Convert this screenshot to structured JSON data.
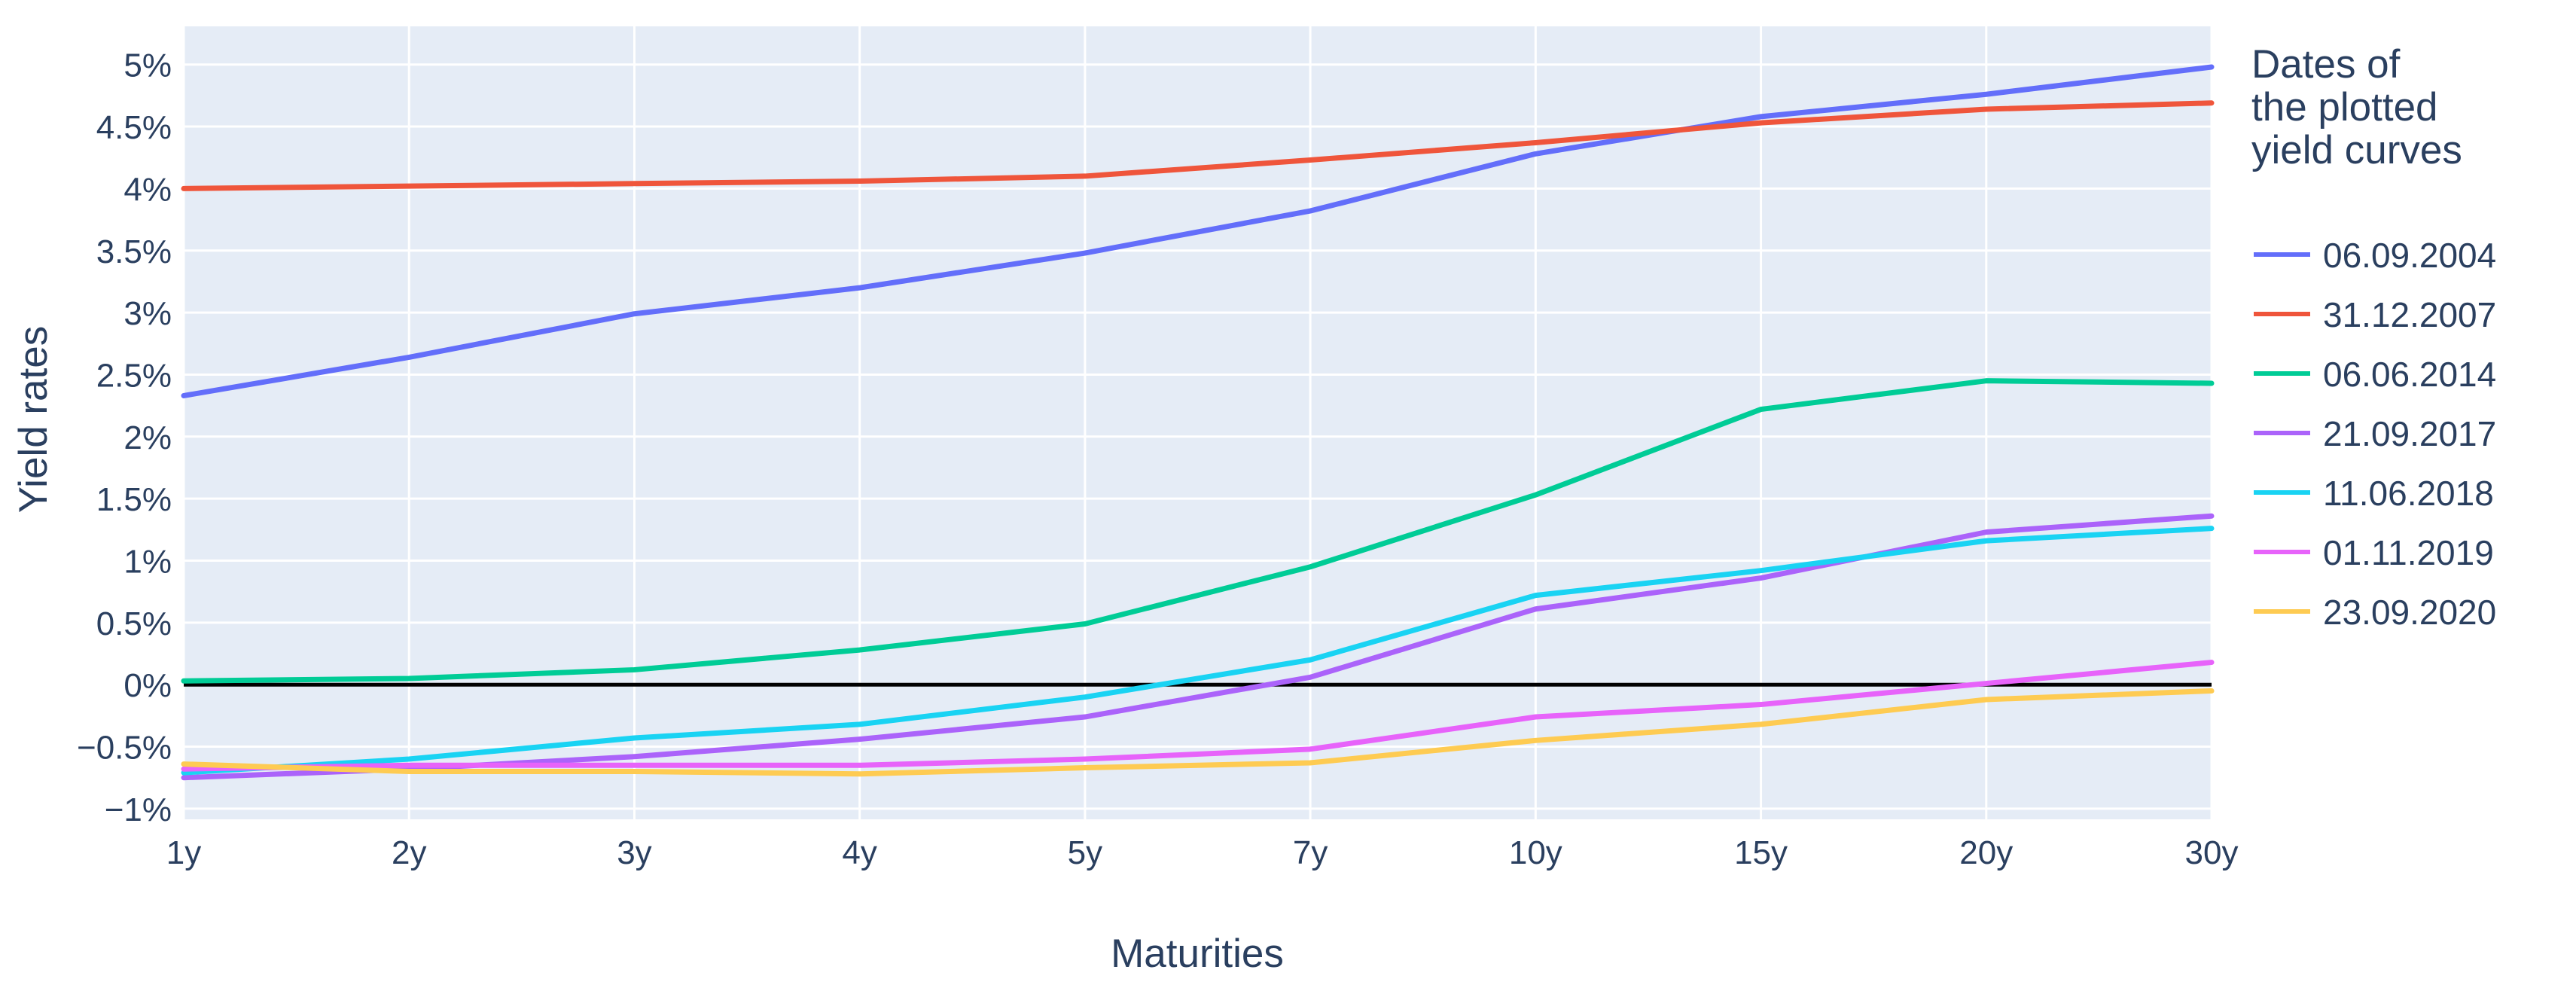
{
  "colors": {
    "text": "#2A3F5F",
    "plot_background": "#E5ECF6",
    "gridline": "#FFFFFF",
    "zero_line": "#000000",
    "page_background": "#FFFFFF"
  },
  "chart_data": {
    "type": "line",
    "title": "",
    "xlabel": "Maturities",
    "ylabel": "Yield rates",
    "categories": [
      "1y",
      "2y",
      "3y",
      "4y",
      "5y",
      "7y",
      "10y",
      "15y",
      "20y",
      "30y"
    ],
    "y_ticks": [
      5,
      4.5,
      4,
      3.5,
      3,
      2.5,
      2,
      1.5,
      1,
      0.5,
      0,
      -0.5,
      -1
    ],
    "y_tick_labels": [
      "5%",
      "4.5%",
      "4%",
      "3.5%",
      "3%",
      "2.5%",
      "2%",
      "1.5%",
      "1%",
      "0.5%",
      "0%",
      "−0.5%",
      "−1%"
    ],
    "ylim": [
      -1.07,
      5.31
    ],
    "grid": true,
    "zero_line": true,
    "legend_position": "right",
    "legend_title_lines": [
      "Dates of",
      "the plotted",
      " yield curves"
    ],
    "series": [
      {
        "name": "06.09.2004",
        "color": "#636EFA",
        "values": [
          2.33,
          2.64,
          2.99,
          3.2,
          3.48,
          3.82,
          4.28,
          4.58,
          4.76,
          4.98
        ]
      },
      {
        "name": "31.12.2007",
        "color": "#EF553B",
        "values": [
          4.0,
          4.02,
          4.04,
          4.06,
          4.1,
          4.23,
          4.37,
          4.53,
          4.64,
          4.69
        ]
      },
      {
        "name": "06.06.2014",
        "color": "#00CC96",
        "values": [
          0.03,
          0.05,
          0.12,
          0.28,
          0.49,
          0.95,
          1.53,
          2.22,
          2.45,
          2.43
        ]
      },
      {
        "name": "21.09.2017",
        "color": "#AB63FA",
        "values": [
          -0.75,
          -0.68,
          -0.58,
          -0.44,
          -0.26,
          0.06,
          0.61,
          0.86,
          1.23,
          1.36
        ]
      },
      {
        "name": "11.06.2018",
        "color": "#19D3F3",
        "values": [
          -0.71,
          -0.6,
          -0.43,
          -0.32,
          -0.1,
          0.2,
          0.72,
          0.92,
          1.16,
          1.26
        ]
      },
      {
        "name": "01.11.2019",
        "color": "#E763FA",
        "values": [
          -0.68,
          -0.65,
          -0.65,
          -0.65,
          -0.6,
          -0.52,
          -0.26,
          -0.16,
          0.01,
          0.18
        ]
      },
      {
        "name": "23.09.2020",
        "color": "#FECB52",
        "values": [
          -0.64,
          -0.7,
          -0.7,
          -0.72,
          -0.67,
          -0.63,
          -0.45,
          -0.32,
          -0.12,
          -0.05
        ]
      }
    ]
  }
}
